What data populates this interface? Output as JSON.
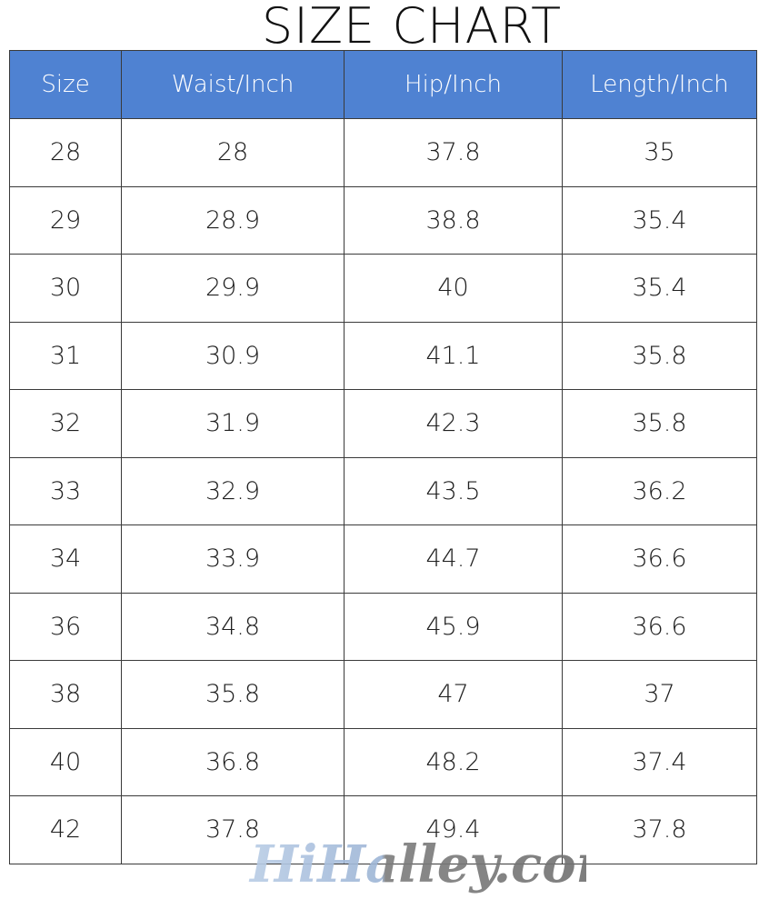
{
  "title": "SIZE CHART",
  "colors": {
    "header_bg": "#4f82d2",
    "header_text": "#ffffff",
    "border": "#3a3a3a"
  },
  "chart_data": {
    "type": "table",
    "title": "SIZE CHART",
    "columns": [
      "Size",
      "Waist/Inch",
      "Hip/Inch",
      "Length/Inch"
    ],
    "rows": [
      [
        "28",
        "28",
        "37.8",
        "35"
      ],
      [
        "29",
        "28.9",
        "38.8",
        "35.4"
      ],
      [
        "30",
        "29.9",
        "40",
        "35.4"
      ],
      [
        "31",
        "30.9",
        "41.1",
        "35.8"
      ],
      [
        "32",
        "31.9",
        "42.3",
        "35.8"
      ],
      [
        "33",
        "32.9",
        "43.5",
        "36.2"
      ],
      [
        "34",
        "33.9",
        "44.7",
        "36.6"
      ],
      [
        "36",
        "34.8",
        "45.9",
        "36.6"
      ],
      [
        "38",
        "35.8",
        "47",
        "37"
      ],
      [
        "40",
        "36.8",
        "48.2",
        "37.4"
      ],
      [
        "42",
        "37.8",
        "49.4",
        "37.8"
      ]
    ]
  },
  "watermark": {
    "text": "HiHalley.com"
  }
}
